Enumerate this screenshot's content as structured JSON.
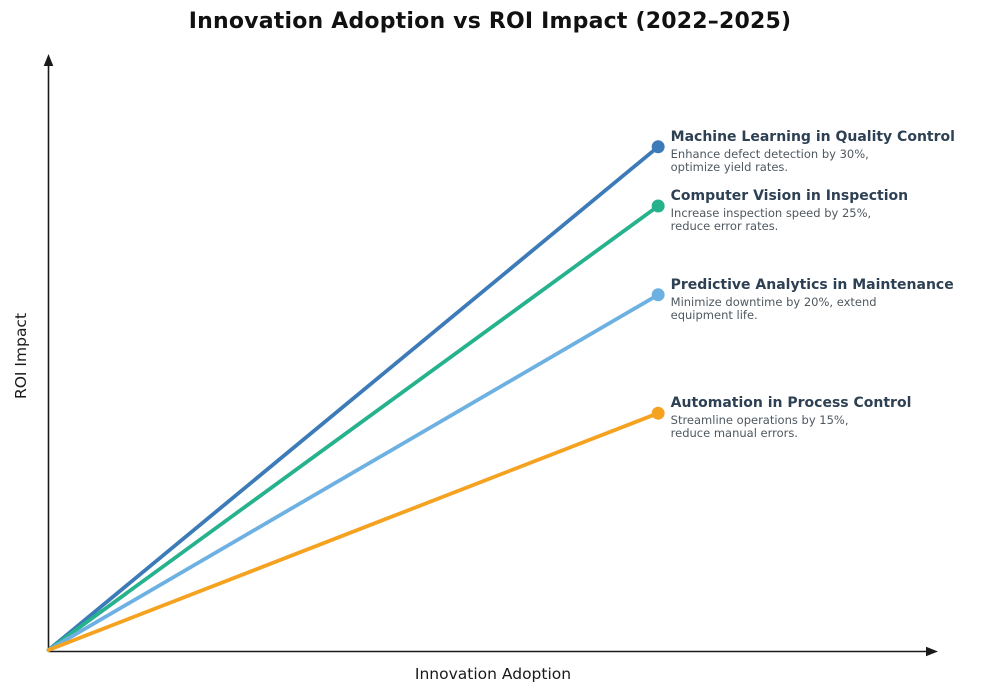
{
  "chart_data": {
    "type": "line",
    "title": "Innovation Adoption vs ROI Impact (2022–2025)",
    "xlabel": "Innovation Adoption",
    "ylabel": "ROI Impact",
    "grid": false,
    "axis_style": "arrow-tipped, no tick labels",
    "axis_color": "#1a1a1a",
    "x_range": [
      0,
      1
    ],
    "y_range": [
      0,
      1
    ],
    "legend_position": "inline annotations at line endpoints",
    "series": [
      {
        "name": "Machine Learning in Quality Control",
        "desc_line1": "Enhance defect detection by 30%,",
        "desc_line2": "optimize yield rates.",
        "roi_gain_pct": 30,
        "color": "#3c7bb8",
        "start": [
          0,
          0
        ],
        "end": [
          0.685,
          0.85
        ]
      },
      {
        "name": "Computer Vision in Inspection",
        "desc_line1": "Increase inspection speed by 25%,",
        "desc_line2": "reduce error rates.",
        "roi_gain_pct": 25,
        "color": "#27b28e",
        "start": [
          0,
          0
        ],
        "end": [
          0.685,
          0.75
        ]
      },
      {
        "name": "Predictive Analytics in Maintenance",
        "desc_line1": "Minimize downtime by 20%, extend",
        "desc_line2": "equipment life.",
        "roi_gain_pct": 20,
        "color": "#6db1e2",
        "start": [
          0,
          0
        ],
        "end": [
          0.685,
          0.6
        ]
      },
      {
        "name": "Automation in Process Control",
        "desc_line1": "Streamline operations by 15%,",
        "desc_line2": "reduce manual errors.",
        "roi_gain_pct": 15,
        "color": "#f5a220",
        "start": [
          0,
          0
        ],
        "end": [
          0.685,
          0.4
        ]
      }
    ]
  }
}
